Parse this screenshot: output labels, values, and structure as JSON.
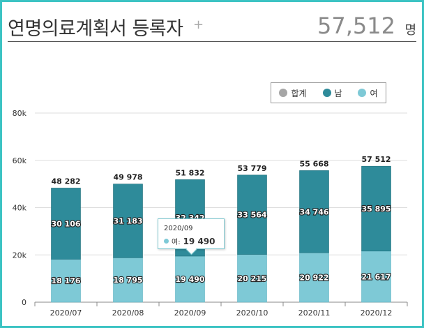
{
  "header": {
    "title": "연명의료계획서 등록자",
    "plus": "+",
    "total": "57,512",
    "unit": "명"
  },
  "legend": [
    {
      "label": "합계",
      "color": "#a6a6a6"
    },
    {
      "label": "남",
      "color": "#2e8b9a"
    },
    {
      "label": "여",
      "color": "#7ec9d6"
    }
  ],
  "tooltip": {
    "date": "2020/09",
    "label": "여:",
    "value": "19 490"
  },
  "chart_data": {
    "type": "bar",
    "stacked": true,
    "categories": [
      "2020/07",
      "2020/08",
      "2020/09",
      "2020/10",
      "2020/11",
      "2020/12"
    ],
    "series": [
      {
        "name": "여",
        "values": [
          18176,
          18795,
          19490,
          20215,
          20922,
          21617
        ],
        "labels": [
          "18 176",
          "18 795",
          "19 490",
          "20 215",
          "20 922",
          "21 617"
        ],
        "color": "#7ec9d6"
      },
      {
        "name": "남",
        "values": [
          30106,
          31183,
          32342,
          33564,
          34746,
          35895
        ],
        "labels": [
          "30 106",
          "31 183",
          "32 342",
          "33 564",
          "34 746",
          "35 895"
        ],
        "color": "#2e8b9a"
      }
    ],
    "totals": [
      48282,
      49978,
      51832,
      53779,
      55668,
      57512
    ],
    "total_labels": [
      "48 282",
      "49 978",
      "51 832",
      "53 779",
      "55 668",
      "57 512"
    ],
    "ylim": [
      0,
      80000
    ],
    "yticks": [
      0,
      20000,
      40000,
      60000,
      80000
    ],
    "ytick_labels": [
      "0",
      "20k",
      "40k",
      "60k",
      "80k"
    ],
    "grid": true,
    "legend_position": "top-right"
  }
}
